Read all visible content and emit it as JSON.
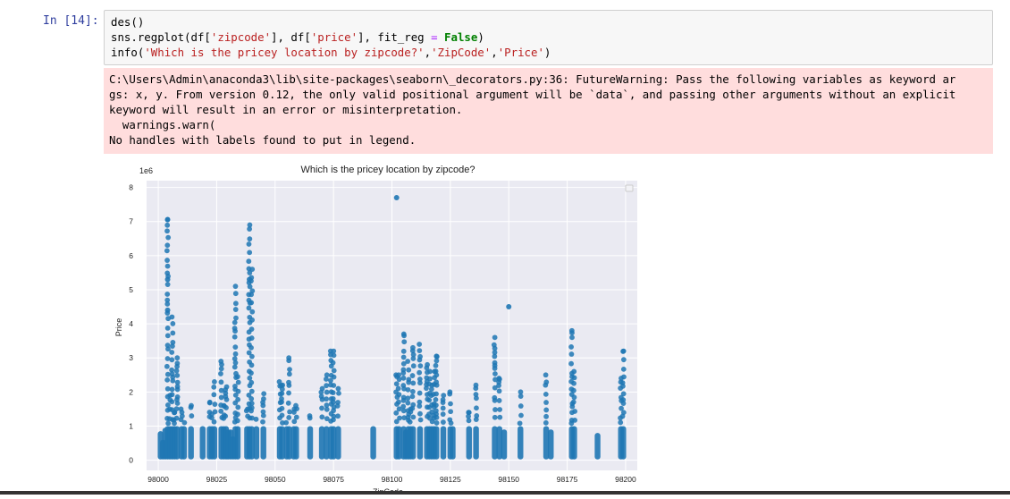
{
  "cell": {
    "prompt": "In [14]:",
    "code_lines": [
      "des()",
      "sns.regplot(df['zipcode'], df['price'], fit_reg = False)",
      "info('Which is the pricey location by zipcode?','ZipCode','Price')"
    ],
    "stderr_lines": [
      "C:\\Users\\Admin\\anaconda3\\lib\\site-packages\\seaborn\\_decorators.py:36: FutureWarning: Pass the following variables as keyword ar",
      "gs: x, y. From version 0.12, the only valid positional argument will be `data`, and passing other arguments without an explicit",
      "keyword will result in an error or misinterpretation.",
      "  warnings.warn(",
      "No handles with labels found to put in legend."
    ]
  },
  "colors": {
    "prompt": "#303f9f",
    "plot_bg": "#eaeaf2",
    "point": "#1f77b4",
    "stderr_bg": "#ffdddd",
    "keyword": "#008000",
    "string": "#ba2121"
  },
  "chart_data": {
    "type": "scatter",
    "title": "Which is the pricey location by zipcode?",
    "xlabel": "ZipCode",
    "ylabel": "Price",
    "y_multiplier_label": "1e6",
    "xlim": [
      97995,
      98205
    ],
    "ylim": [
      -0.3,
      8.2
    ],
    "xticks": [
      98000,
      98025,
      98050,
      98075,
      98100,
      98125,
      98150,
      98175,
      98200
    ],
    "yticks": [
      0,
      1,
      2,
      3,
      4,
      5,
      6,
      7,
      8
    ],
    "grid": true,
    "legend": "top-right (empty)",
    "zipcode_columns": [
      {
        "zip": 98001,
        "max": 0.85
      },
      {
        "zip": 98002,
        "max": 0.6
      },
      {
        "zip": 98003,
        "max": 0.95
      },
      {
        "zip": 98004,
        "max": 7.06
      },
      {
        "zip": 98005,
        "max": 1.9
      },
      {
        "zip": 98006,
        "max": 4.2
      },
      {
        "zip": 98007,
        "max": 1.4
      },
      {
        "zip": 98008,
        "max": 3.0
      },
      {
        "zip": 98010,
        "max": 1.5
      },
      {
        "zip": 98011,
        "max": 1.1
      },
      {
        "zip": 98014,
        "max": 1.6
      },
      {
        "zip": 98019,
        "max": 1.0
      },
      {
        "zip": 98022,
        "max": 1.7
      },
      {
        "zip": 98023,
        "max": 1.35
      },
      {
        "zip": 98024,
        "max": 2.3
      },
      {
        "zip": 98027,
        "max": 2.9
      },
      {
        "zip": 98028,
        "max": 1.6
      },
      {
        "zip": 98029,
        "max": 2.15
      },
      {
        "zip": 98030,
        "max": 0.9
      },
      {
        "zip": 98031,
        "max": 0.9
      },
      {
        "zip": 98032,
        "max": 0.7
      },
      {
        "zip": 98033,
        "max": 5.1
      },
      {
        "zip": 98034,
        "max": 2.45
      },
      {
        "zip": 98038,
        "max": 1.5
      },
      {
        "zip": 98039,
        "max": 6.9
      },
      {
        "zip": 98040,
        "max": 5.6
      },
      {
        "zip": 98042,
        "max": 1.2
      },
      {
        "zip": 98045,
        "max": 1.95
      },
      {
        "zip": 98052,
        "max": 2.3
      },
      {
        "zip": 98053,
        "max": 2.2
      },
      {
        "zip": 98055,
        "max": 1.1
      },
      {
        "zip": 98056,
        "max": 3.0
      },
      {
        "zip": 98058,
        "max": 1.5
      },
      {
        "zip": 98059,
        "max": 1.6
      },
      {
        "zip": 98065,
        "max": 1.3
      },
      {
        "zip": 98070,
        "max": 2.1
      },
      {
        "zip": 98072,
        "max": 2.5
      },
      {
        "zip": 98074,
        "max": 3.2
      },
      {
        "zip": 98075,
        "max": 3.2
      },
      {
        "zip": 98077,
        "max": 2.1
      },
      {
        "zip": 98092,
        "max": 1.0
      },
      {
        "zip": 98102,
        "max": 2.5
      },
      {
        "zip": 98103,
        "max": 2.5
      },
      {
        "zip": 98105,
        "max": 3.7
      },
      {
        "zip": 98106,
        "max": 0.9
      },
      {
        "zip": 98107,
        "max": 2.9
      },
      {
        "zip": 98108,
        "max": 1.5
      },
      {
        "zip": 98109,
        "max": 3.3
      },
      {
        "zip": 98112,
        "max": 3.4
      },
      {
        "zip": 98115,
        "max": 2.8
      },
      {
        "zip": 98116,
        "max": 2.6
      },
      {
        "zip": 98117,
        "max": 2.2
      },
      {
        "zip": 98118,
        "max": 2.6
      },
      {
        "zip": 98119,
        "max": 3.05
      },
      {
        "zip": 98122,
        "max": 1.9
      },
      {
        "zip": 98125,
        "max": 2.0
      },
      {
        "zip": 98126,
        "max": 1.0
      },
      {
        "zip": 98133,
        "max": 1.4
      },
      {
        "zip": 98136,
        "max": 2.2
      },
      {
        "zip": 98144,
        "max": 3.6
      },
      {
        "zip": 98146,
        "max": 2.4
      },
      {
        "zip": 98148,
        "max": 0.9
      },
      {
        "zip": 98155,
        "max": 2.0
      },
      {
        "zip": 98166,
        "max": 2.5
      },
      {
        "zip": 98168,
        "max": 0.9
      },
      {
        "zip": 98177,
        "max": 3.8
      },
      {
        "zip": 98178,
        "max": 2.6
      },
      {
        "zip": 98188,
        "max": 0.8
      },
      {
        "zip": 98198,
        "max": 2.4
      },
      {
        "zip": 98199,
        "max": 3.2
      }
    ],
    "outliers": [
      {
        "zip": 98102,
        "price": 7.7
      },
      {
        "zip": 98039,
        "price": 5.3
      },
      {
        "zip": 98004,
        "price": 5.3
      },
      {
        "zip": 98150,
        "price": 4.5
      },
      {
        "zip": 98004,
        "price": 4.4
      }
    ]
  }
}
